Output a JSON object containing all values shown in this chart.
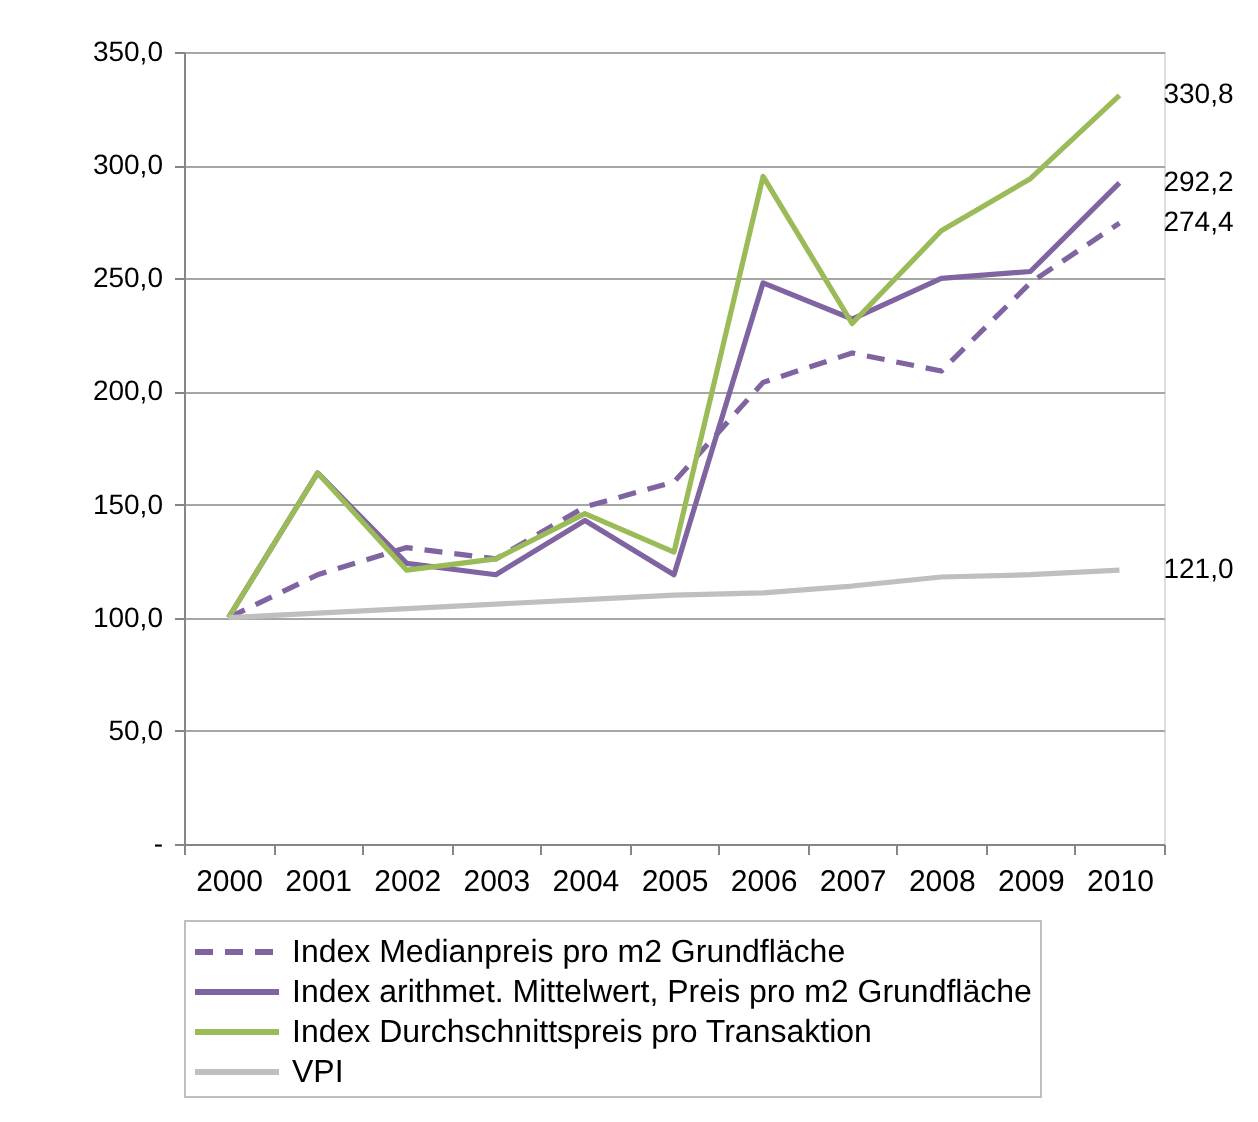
{
  "chart_data": {
    "type": "line",
    "categories": [
      "2000",
      "2001",
      "2002",
      "2003",
      "2004",
      "2005",
      "2006",
      "2007",
      "2008",
      "2009",
      "2010"
    ],
    "series": [
      {
        "name": "Index Medianpreis pro m2 Grundfläche",
        "color": "#8064a2",
        "line_style": "dashed",
        "values": [
          100,
          119,
          131,
          126,
          149,
          160,
          204,
          217,
          209,
          248,
          274.4
        ],
        "value_labels": [
          null,
          null,
          null,
          null,
          null,
          null,
          null,
          null,
          null,
          null,
          "274,4"
        ]
      },
      {
        "name": "Index arithmet. Mittelwert, Preis pro m2 Grundfläche",
        "color": "#8064a2",
        "line_style": "solid",
        "values": [
          100,
          164,
          124,
          119,
          143,
          119,
          248,
          232,
          250,
          253,
          292.2
        ],
        "value_labels": [
          null,
          null,
          null,
          null,
          null,
          null,
          null,
          null,
          null,
          null,
          "292,2"
        ]
      },
      {
        "name": "Index Durchschnittspreis pro Transaktion",
        "color": "#9bbb59",
        "line_style": "solid",
        "values": [
          100,
          164,
          121,
          126,
          146,
          129,
          295,
          230,
          271,
          294,
          330.8
        ],
        "value_labels": [
          null,
          null,
          null,
          null,
          null,
          null,
          null,
          null,
          null,
          null,
          "330,8"
        ]
      },
      {
        "name": "VPI",
        "color": "#bfbfbf",
        "line_style": "solid",
        "values": [
          100,
          102,
          104,
          106,
          108,
          110,
          111,
          114,
          118,
          119,
          121.0
        ],
        "value_labels": [
          null,
          null,
          null,
          null,
          null,
          null,
          null,
          null,
          null,
          null,
          "121,0"
        ]
      }
    ],
    "ylim": [
      0,
      350
    ],
    "yticks": [
      {
        "value": 0,
        "label": "-"
      },
      {
        "value": 50,
        "label": "50,0"
      },
      {
        "value": 100,
        "label": "100,0"
      },
      {
        "value": 150,
        "label": "150,0"
      },
      {
        "value": 200,
        "label": "200,0"
      },
      {
        "value": 250,
        "label": "250,0"
      },
      {
        "value": 300,
        "label": "300,0"
      },
      {
        "value": 350,
        "label": "350,0"
      }
    ],
    "grid": "y",
    "legend": "bottom"
  }
}
